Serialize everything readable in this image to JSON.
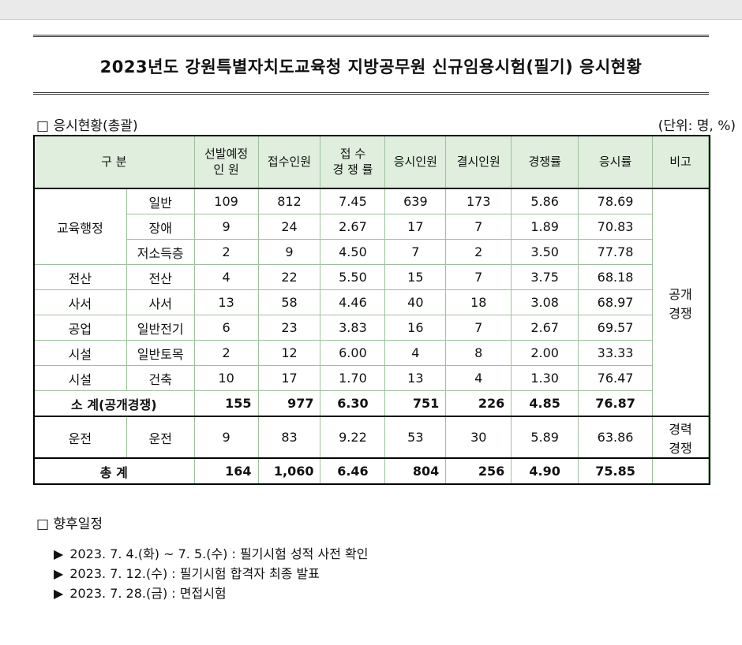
{
  "title": "2023년도 강원특별자치도교육청 지방공무원 신규임용시험(필기) 응시현황",
  "section1": "□ 응시현황(총괄)",
  "unit": "(단위: 명, %)",
  "headers": {
    "category": "구   분",
    "select_line1": "선발예정",
    "select_line2": "인   원",
    "applicants": "접수인원",
    "comp_line1": "접   수",
    "comp_line2": "경 쟁 률",
    "takers": "응시인원",
    "absent": "결시인원",
    "comp_rate": "경쟁률",
    "take_rate": "응시률",
    "note": "비고"
  },
  "rows": [
    {
      "g": "교육행정",
      "s": "일반",
      "v": [
        "109",
        "812",
        "7.45",
        "639",
        "173",
        "5.86",
        "78.69"
      ]
    },
    {
      "g": "",
      "s": "장애",
      "v": [
        "9",
        "24",
        "2.67",
        "17",
        "7",
        "1.89",
        "70.83"
      ]
    },
    {
      "g": "",
      "s": "저소득층",
      "v": [
        "2",
        "9",
        "4.50",
        "7",
        "2",
        "3.50",
        "77.78"
      ]
    },
    {
      "g": "전산",
      "s": "전산",
      "v": [
        "4",
        "22",
        "5.50",
        "15",
        "7",
        "3.75",
        "68.18"
      ]
    },
    {
      "g": "사서",
      "s": "사서",
      "v": [
        "13",
        "58",
        "4.46",
        "40",
        "18",
        "3.08",
        "68.97"
      ]
    },
    {
      "g": "공업",
      "s": "일반전기",
      "v": [
        "6",
        "23",
        "3.83",
        "16",
        "7",
        "2.67",
        "69.57"
      ]
    },
    {
      "g": "시설",
      "s": "일반토목",
      "v": [
        "2",
        "12",
        "6.00",
        "4",
        "8",
        "2.00",
        "33.33"
      ]
    },
    {
      "g": "시설",
      "s": "건축",
      "v": [
        "10",
        "17",
        "1.70",
        "13",
        "4",
        "1.30",
        "76.47"
      ]
    }
  ],
  "note_public_1": "공개",
  "note_public_2": "경쟁",
  "subtotal": {
    "label": "소 계(공개경쟁)",
    "v": [
      "155",
      "977",
      "6.30",
      "751",
      "226",
      "4.85",
      "76.87"
    ]
  },
  "career": {
    "g": "운전",
    "s": "운전",
    "v": [
      "9",
      "83",
      "9.22",
      "53",
      "30",
      "5.89",
      "63.86"
    ],
    "note1": "경력",
    "note2": "경쟁"
  },
  "total": {
    "label": "총  계",
    "v": [
      "164",
      "1,060",
      "6.46",
      "804",
      "256",
      "4.90",
      "75.85"
    ]
  },
  "section2": "□ 향후일정",
  "schedule": [
    "2023. 7. 4.(화) ~ 7. 5.(수) : 필기시험 성적 사전 확인",
    "2023. 7. 12.(수) : 필기시험 합격자 최종 발표",
    "2023. 7. 28.(금) : 면접시험"
  ],
  "bullet": "▶"
}
